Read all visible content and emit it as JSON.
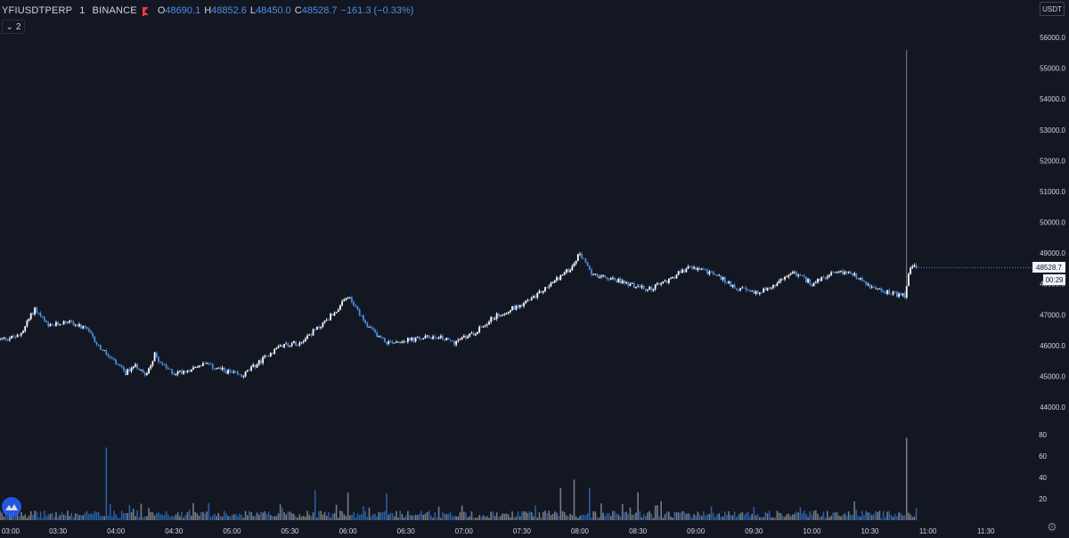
{
  "legend": {
    "symbol": "YFIUSDTPERP",
    "interval": "1",
    "exchange": "BINANCE",
    "open_label": "O",
    "open": "48690.1",
    "high_label": "H",
    "high": "48852.6",
    "low_label": "L",
    "low": "48450.0",
    "close_label": "C",
    "close": "48528.7",
    "change": "−161.3 (−0.33%)",
    "collapse_label": "2"
  },
  "currency_unit": "USDT",
  "last_price_label": "48528.7",
  "countdown": "00:29",
  "colors": {
    "background": "#131722",
    "up": "#ffffff",
    "down": "#4a8fe2",
    "volume_up": "#8a8d93",
    "volume_down": "#2f6bb8",
    "text": "#d1d4dc",
    "accent": "#4a8fe2",
    "flag": "#f23645"
  },
  "chart_data": {
    "type": "candlestick",
    "price_axis": {
      "ticks": [
        "56000.0",
        "55000.0",
        "54000.0",
        "53000.0",
        "52000.0",
        "51000.0",
        "50000.0",
        "49000.0",
        "48000.0",
        "47000.0",
        "46000.0",
        "45000.0",
        "44000.0"
      ],
      "range": [
        43500,
        56400
      ]
    },
    "volume_axis": {
      "ticks": [
        "80",
        "60",
        "40",
        "20"
      ],
      "range": [
        0,
        85
      ]
    },
    "time_axis": {
      "ticks": [
        "03:00",
        "03:30",
        "04:00",
        "04:30",
        "05:00",
        "05:30",
        "06:00",
        "06:30",
        "07:00",
        "07:30",
        "08:00",
        "08:30",
        "09:00",
        "09:30",
        "10:00",
        "10:30",
        "11:00",
        "11:30"
      ],
      "start": "03:00",
      "end": "11:40",
      "interval_minutes": 1
    },
    "price_path": [
      [
        "03:00",
        46200
      ],
      [
        "03:10",
        46300
      ],
      [
        "03:18",
        47200
      ],
      [
        "03:25",
        46600
      ],
      [
        "03:35",
        46800
      ],
      [
        "03:45",
        46500
      ],
      [
        "03:52",
        45900
      ],
      [
        "04:00",
        45400
      ],
      [
        "04:05",
        45100
      ],
      [
        "04:10",
        45400
      ],
      [
        "04:15",
        45000
      ],
      [
        "04:20",
        45700
      ],
      [
        "04:25",
        45300
      ],
      [
        "04:30",
        45100
      ],
      [
        "04:37",
        45200
      ],
      [
        "04:45",
        45400
      ],
      [
        "04:55",
        45200
      ],
      [
        "05:05",
        45000
      ],
      [
        "05:15",
        45500
      ],
      [
        "05:25",
        46000
      ],
      [
        "05:35",
        46100
      ],
      [
        "05:45",
        46600
      ],
      [
        "05:55",
        47200
      ],
      [
        "06:00",
        47600
      ],
      [
        "06:05",
        47100
      ],
      [
        "06:10",
        46600
      ],
      [
        "06:20",
        46100
      ],
      [
        "06:35",
        46200
      ],
      [
        "06:45",
        46300
      ],
      [
        "06:55",
        46100
      ],
      [
        "07:05",
        46400
      ],
      [
        "07:15",
        46900
      ],
      [
        "07:25",
        47200
      ],
      [
        "07:35",
        47500
      ],
      [
        "07:45",
        48000
      ],
      [
        "07:55",
        48500
      ],
      [
        "08:00",
        49000
      ],
      [
        "08:05",
        48400
      ],
      [
        "08:12",
        48200
      ],
      [
        "08:20",
        48100
      ],
      [
        "08:35",
        47800
      ],
      [
        "08:45",
        48100
      ],
      [
        "08:55",
        48500
      ],
      [
        "09:00",
        48500
      ],
      [
        "09:10",
        48300
      ],
      [
        "09:20",
        47900
      ],
      [
        "09:30",
        47700
      ],
      [
        "09:40",
        47900
      ],
      [
        "09:50",
        48400
      ],
      [
        "10:00",
        48000
      ],
      [
        "10:10",
        48300
      ],
      [
        "10:20",
        48400
      ],
      [
        "10:30",
        47900
      ],
      [
        "10:40",
        47700
      ],
      [
        "10:48",
        47600
      ],
      [
        "10:50",
        48300
      ],
      [
        "10:52",
        48600
      ],
      [
        "10:54",
        48500
      ]
    ],
    "spike": {
      "time": "10:49",
      "high": 55600
    },
    "last": {
      "open": 48690.1,
      "high": 48852.6,
      "low": 48450.0,
      "close": 48528.7
    },
    "volume_spikes": [
      [
        "03:55",
        68
      ],
      [
        "10:49",
        77
      ],
      [
        "07:57",
        38
      ],
      [
        "07:50",
        30
      ],
      [
        "08:05",
        30
      ],
      [
        "08:30",
        26
      ],
      [
        "05:43",
        28
      ],
      [
        "06:00",
        26
      ],
      [
        "06:20",
        25
      ]
    ]
  }
}
